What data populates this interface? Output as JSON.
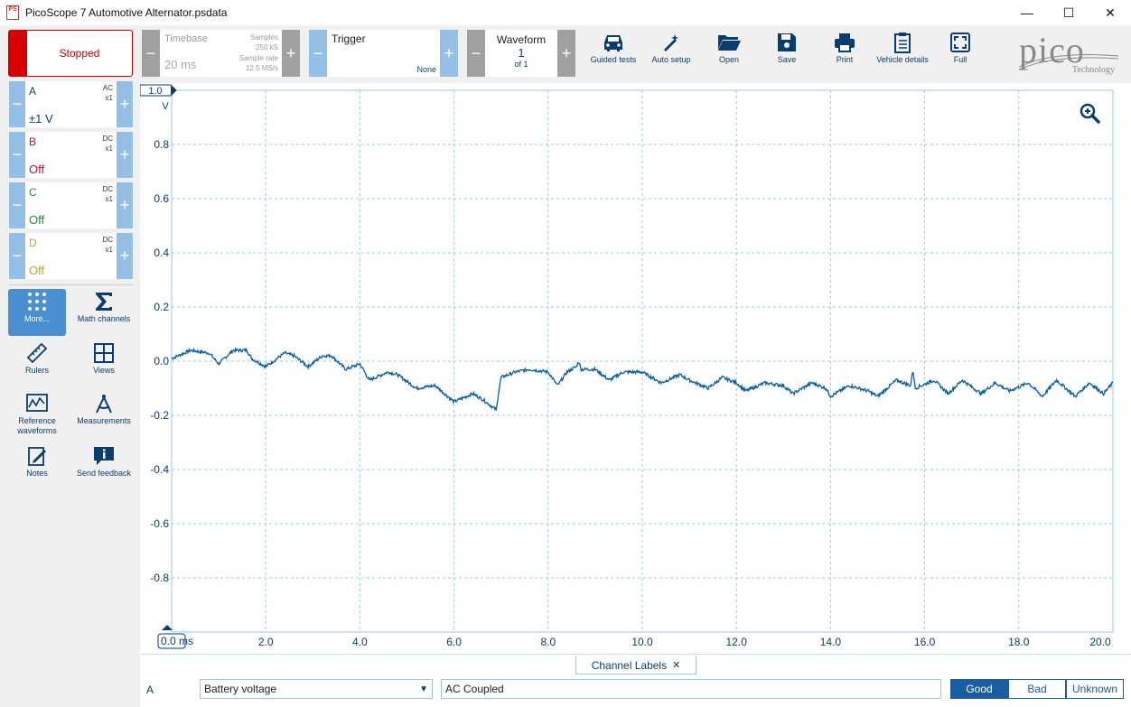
{
  "window": {
    "app_icon_text": "PS",
    "title": "PicoScope 7 Automotive Alternator.psdata",
    "minimize": "—",
    "maximize": "☐",
    "close": "✕"
  },
  "toolbar": {
    "run_state": "Stopped",
    "timebase": {
      "label": "Timebase",
      "value": "20 ms",
      "samples_label": "Samples",
      "samples_value": "250 kS",
      "rate_label": "Sample rate",
      "rate_value": "12.5 MS/s"
    },
    "trigger": {
      "label": "Trigger",
      "mode": "None"
    },
    "waveform": {
      "label": "Waveform",
      "index": "1",
      "of": "of 1"
    },
    "buttons": [
      "Guided tests",
      "Auto setup",
      "Open",
      "Save",
      "Print",
      "Vehicle details",
      "Full"
    ],
    "logo_text": "pico",
    "logo_sub": "Technology",
    "minus": "−",
    "plus": "+"
  },
  "channels": [
    {
      "name": "A",
      "coupling": "AC",
      "probe": "x1",
      "value": "±1 V",
      "color": "#0a3d6e"
    },
    {
      "name": "B",
      "coupling": "DC",
      "probe": "x1",
      "value": "Off",
      "color": "#c8102e"
    },
    {
      "name": "C",
      "coupling": "DC",
      "probe": "x1",
      "value": "Off",
      "color": "#1e8c3a"
    },
    {
      "name": "D",
      "coupling": "DC",
      "probe": "x1",
      "value": "Off",
      "color": "#c9a227"
    }
  ],
  "tools": [
    {
      "label": "More...",
      "icon": "grid-icon"
    },
    {
      "label": "Math channels",
      "icon": "sigma-icon"
    },
    {
      "label": "Rulers",
      "icon": "ruler-icon"
    },
    {
      "label": "Views",
      "icon": "views-icon"
    },
    {
      "label": "Reference waveforms",
      "icon": "reference-waveform-icon"
    },
    {
      "label": "Measurements",
      "icon": "measurements-icon"
    },
    {
      "label": "Notes",
      "icon": "notes-icon"
    },
    {
      "label": "Send feedback",
      "icon": "feedback-icon"
    }
  ],
  "plot": {
    "y_unit": "V",
    "y_top_tag": "1.0",
    "y_ticks": [
      "0.8",
      "0.6",
      "0.4",
      "0.2",
      "0.0",
      "-0.2",
      "-0.4",
      "-0.6",
      "-0.8"
    ],
    "x_ticks": [
      "2.0",
      "4.0",
      "6.0",
      "8.0",
      "10.0",
      "12.0",
      "14.0",
      "16.0",
      "18.0",
      "20.0"
    ],
    "x_start_tag": "0.0 ms",
    "trace_color": "#0a5fa0",
    "grid_color": "#9cc8e6"
  },
  "chart_data": {
    "type": "line",
    "xlabel": "ms",
    "ylabel": "V",
    "xlim": [
      0,
      20
    ],
    "ylim": [
      -1,
      1
    ],
    "grid": true,
    "series": [
      {
        "x": [
          0.0,
          0.4,
          0.8,
          1.0,
          1.3,
          1.6,
          1.7,
          2.0,
          2.4,
          2.6,
          2.9,
          3.2,
          3.4,
          3.7,
          4.0,
          4.2,
          4.6,
          4.8,
          5.2,
          5.6,
          5.8,
          6.0,
          6.4,
          6.6,
          6.9,
          6.95,
          7.0,
          7.3,
          7.6,
          8.0,
          8.2,
          8.4,
          8.6,
          8.65,
          8.7,
          9.0,
          9.3,
          9.6,
          10.0,
          10.4,
          10.8,
          11.0,
          11.4,
          11.7,
          12.0,
          12.2,
          12.6,
          13.0,
          13.2,
          13.6,
          13.9,
          14.0,
          14.4,
          14.8,
          15.0,
          15.4,
          15.7,
          15.75,
          15.8,
          16.2,
          16.5,
          16.8,
          17.2,
          17.5,
          17.8,
          18.2,
          18.5,
          18.8,
          19.2,
          19.5,
          19.8,
          20.0
        ],
        "y": [
          0.01,
          0.04,
          0.03,
          -0.01,
          0.04,
          0.04,
          0.01,
          -0.02,
          0.03,
          0.02,
          -0.02,
          0.02,
          0.02,
          -0.03,
          -0.01,
          -0.07,
          -0.04,
          -0.05,
          -0.1,
          -0.09,
          -0.12,
          -0.15,
          -0.12,
          -0.14,
          -0.18,
          -0.11,
          -0.06,
          -0.04,
          -0.03,
          -0.04,
          -0.09,
          -0.04,
          -0.02,
          0.0,
          -0.03,
          -0.03,
          -0.07,
          -0.04,
          -0.04,
          -0.08,
          -0.05,
          -0.07,
          -0.1,
          -0.06,
          -0.08,
          -0.11,
          -0.08,
          -0.09,
          -0.12,
          -0.08,
          -0.1,
          -0.13,
          -0.09,
          -0.11,
          -0.13,
          -0.07,
          -0.09,
          -0.03,
          -0.1,
          -0.07,
          -0.12,
          -0.07,
          -0.12,
          -0.08,
          -0.11,
          -0.08,
          -0.13,
          -0.07,
          -0.13,
          -0.08,
          -0.12,
          -0.08
        ]
      }
    ]
  },
  "bottom": {
    "tab_label": "Channel Labels",
    "tab_close": "✕",
    "row_channel": "A",
    "select_value": "Battery voltage",
    "select_arrow": "▼",
    "text_value": "AC Coupled",
    "ratings": [
      "Good",
      "Bad",
      "Unknown"
    ],
    "selected_rating": "Good",
    "accent": "#1a5da0"
  }
}
